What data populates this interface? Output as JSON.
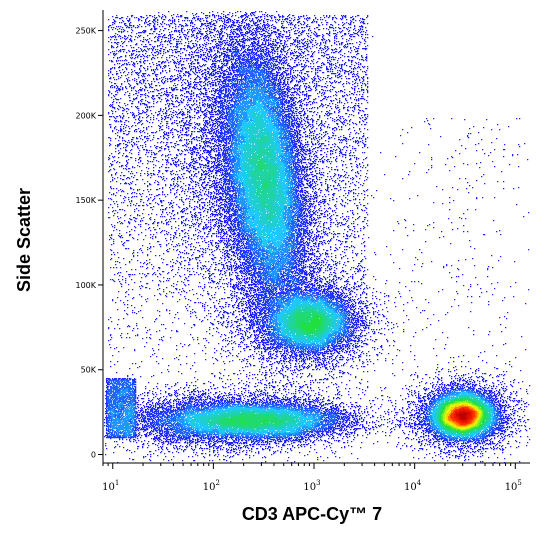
{
  "chart_data": {
    "type": "scatter",
    "title": "",
    "xlabel": "CD3 APC-Cy™ 7",
    "ylabel": "Side Scatter",
    "x_scale": "log",
    "xlim": [
      8,
      140000
    ],
    "ylim": [
      -5000,
      262143
    ],
    "grid": false,
    "color_mode": "density",
    "x_ticks": [
      {
        "value": 10,
        "base": "10",
        "exp": "1"
      },
      {
        "value": 100,
        "base": "10",
        "exp": "2"
      },
      {
        "value": 1000,
        "base": "10",
        "exp": "3"
      },
      {
        "value": 10000,
        "base": "10",
        "exp": "4"
      },
      {
        "value": 100000,
        "base": "10",
        "exp": "5"
      }
    ],
    "y_ticks": [
      {
        "value": 0,
        "label": "0"
      },
      {
        "value": 50000,
        "label": "50K"
      },
      {
        "value": 100000,
        "label": "100K"
      },
      {
        "value": 150000,
        "label": "150K"
      },
      {
        "value": 200000,
        "label": "200K"
      },
      {
        "value": 250000,
        "label": "250K"
      }
    ],
    "populations": [
      {
        "x_center": 320,
        "y_center": 165000,
        "peak_density": "high"
      },
      {
        "x_center": 900,
        "y_center": 78000,
        "peak_density": "medium"
      },
      {
        "x_center": 250,
        "y_center": 20000,
        "peak_density": "medium"
      },
      {
        "x_center": 30000,
        "y_center": 23000,
        "peak_density": "very high"
      }
    ],
    "colors": {
      "low": "#2020ff",
      "medium": "#1ec8ff",
      "mid_high": "#20e040",
      "high": "#ffff00",
      "very_high": "#ff2000",
      "peak": "#c00000"
    }
  }
}
